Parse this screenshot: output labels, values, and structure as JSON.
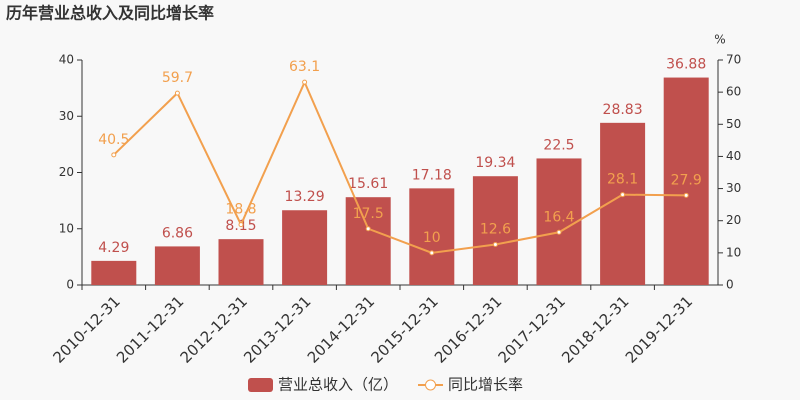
{
  "chart_data": {
    "type": "bar",
    "title": "历年营业总收入及同比增长率",
    "y2label": "%",
    "categories": [
      "2010-12-31",
      "2011-12-31",
      "2012-12-31",
      "2013-12-31",
      "2014-12-31",
      "2015-12-31",
      "2016-12-31",
      "2017-12-31",
      "2018-12-31",
      "2019-12-31"
    ],
    "series": [
      {
        "name": "营业总收入（亿）",
        "type": "bar",
        "color": "#c0504d",
        "values": [
          4.29,
          6.86,
          8.15,
          13.29,
          15.61,
          17.18,
          19.34,
          22.5,
          28.83,
          36.88
        ]
      },
      {
        "name": "同比增长率",
        "type": "line",
        "axis": "y2",
        "color": "#f2a04e",
        "values": [
          40.5,
          59.7,
          18.8,
          63.1,
          17.5,
          10,
          12.6,
          16.4,
          28.1,
          27.9
        ]
      }
    ],
    "ylim": [
      0,
      40
    ],
    "yticks": [
      0,
      10,
      20,
      30,
      40
    ],
    "y2lim": [
      0,
      70
    ],
    "y2ticks": [
      0,
      10,
      20,
      30,
      40,
      50,
      60,
      70
    ],
    "legend": "bottom"
  }
}
